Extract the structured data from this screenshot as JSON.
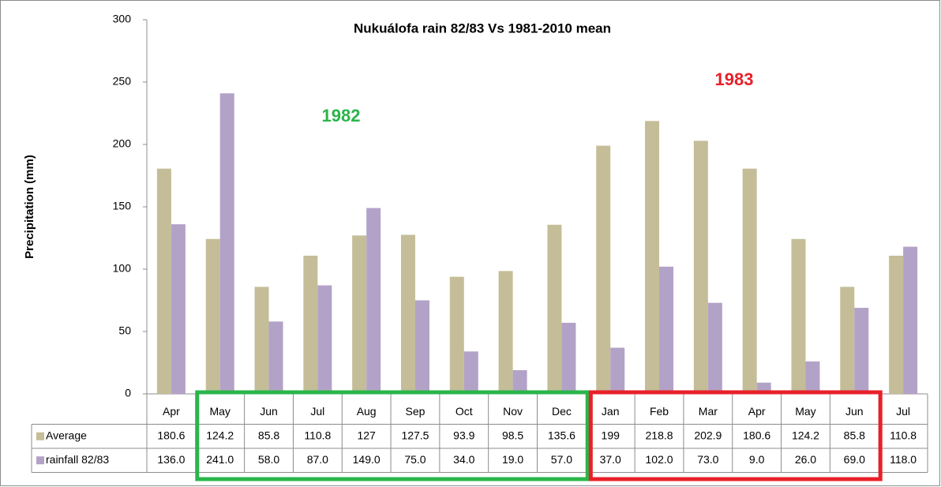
{
  "chart_data": {
    "type": "bar",
    "title": "Nukuálofa rain 82/83 Vs 1981-2010 mean",
    "y_label": "Precipitation (mm)",
    "categories": [
      "Apr",
      "May",
      "Jun",
      "Jul",
      "Aug",
      "Sep",
      "Oct",
      "Nov",
      "Dec",
      "Jan",
      "Feb",
      "Mar",
      "Apr",
      "May",
      "Jun",
      "Jul"
    ],
    "series": [
      {
        "name": "Average",
        "color": "#c4bd97",
        "values": [
          180.6,
          124.2,
          85.8,
          110.8,
          127,
          127.5,
          93.9,
          98.5,
          135.6,
          199,
          218.8,
          202.9,
          180.6,
          124.2,
          85.8,
          110.8
        ]
      },
      {
        "name": "rainfall 82/83",
        "color": "#b3a2c7",
        "values": [
          136,
          241,
          58,
          87,
          149,
          75,
          34,
          19,
          57,
          37,
          102,
          73,
          9,
          26,
          69,
          118
        ],
        "value_labels": [
          "136.0",
          "241.0",
          "58.0",
          "87.0",
          "149.0",
          "75.0",
          "34.0",
          "19.0",
          "57.0",
          "37.0",
          "102.0",
          "73.0",
          "9.0",
          "26.0",
          "69.0",
          "118.0"
        ]
      }
    ],
    "annotations": [
      {
        "text": "1982",
        "color": "#2ab54a"
      },
      {
        "text": "1983",
        "color": "#e8202a"
      }
    ],
    "ylim": [
      0,
      300
    ],
    "yticks": [
      0,
      50,
      100,
      150,
      200,
      250,
      300
    ],
    "grid": false
  }
}
